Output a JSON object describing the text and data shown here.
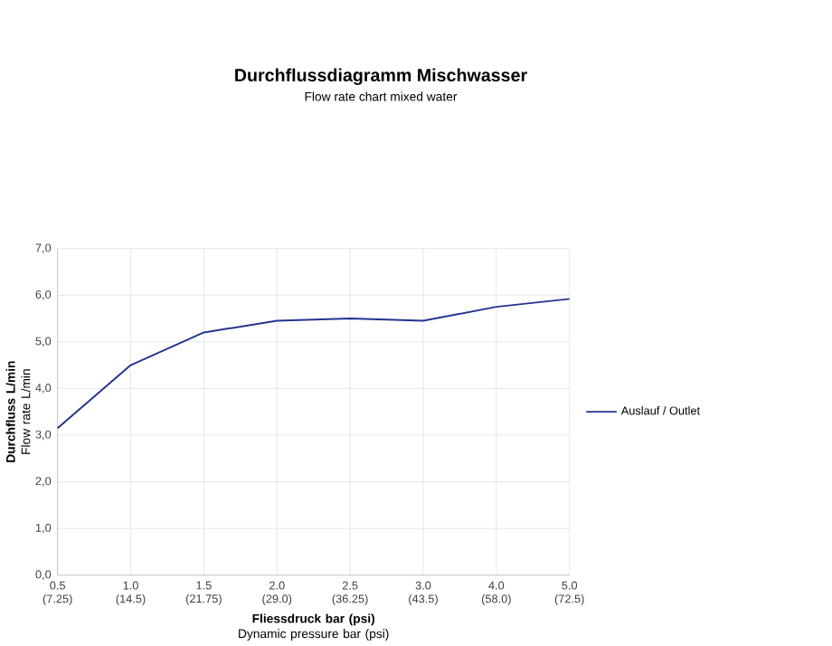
{
  "chart_data": {
    "type": "line",
    "title": "Durchflussdiagramm Mischwasser",
    "subtitle": "Flow rate chart mixed water",
    "xlabel": "**Fliessdruck bar (psi)** Dynamic pressure bar (psi)",
    "ylabel": "**Durchfluss L/min** Flow rate L/min",
    "categories": [
      "0.5 (7.25)",
      "1.0 (14.5)",
      "1.5 (21.75)",
      "2.0 (29.0)",
      "2.5 (36.25)",
      "3.0 (43.5)",
      "4.0 (58.0)",
      "5.0 (72.5)"
    ],
    "series": [
      {
        "name": "Auslauf / Outlet",
        "color": "#23358f",
        "values": [
          3.15,
          4.5,
          5.2,
          5.45,
          5.5,
          5.45,
          5.75,
          5.92
        ]
      }
    ],
    "ylim": [
      0,
      7
    ],
    "yticks": [
      {
        "value": 0,
        "label": "0,0"
      },
      {
        "value": 1,
        "label": "1,0"
      },
      {
        "value": 2,
        "label": "2,0"
      },
      {
        "value": 3,
        "label": "3,0"
      },
      {
        "value": 4,
        "label": "4,0"
      },
      {
        "value": 5,
        "label": "5,0"
      },
      {
        "value": 6,
        "label": "6,0"
      },
      {
        "value": 7,
        "label": "7,0"
      }
    ],
    "grid": true,
    "legend": "right",
    "marker": "none",
    "line_style": "solid"
  }
}
